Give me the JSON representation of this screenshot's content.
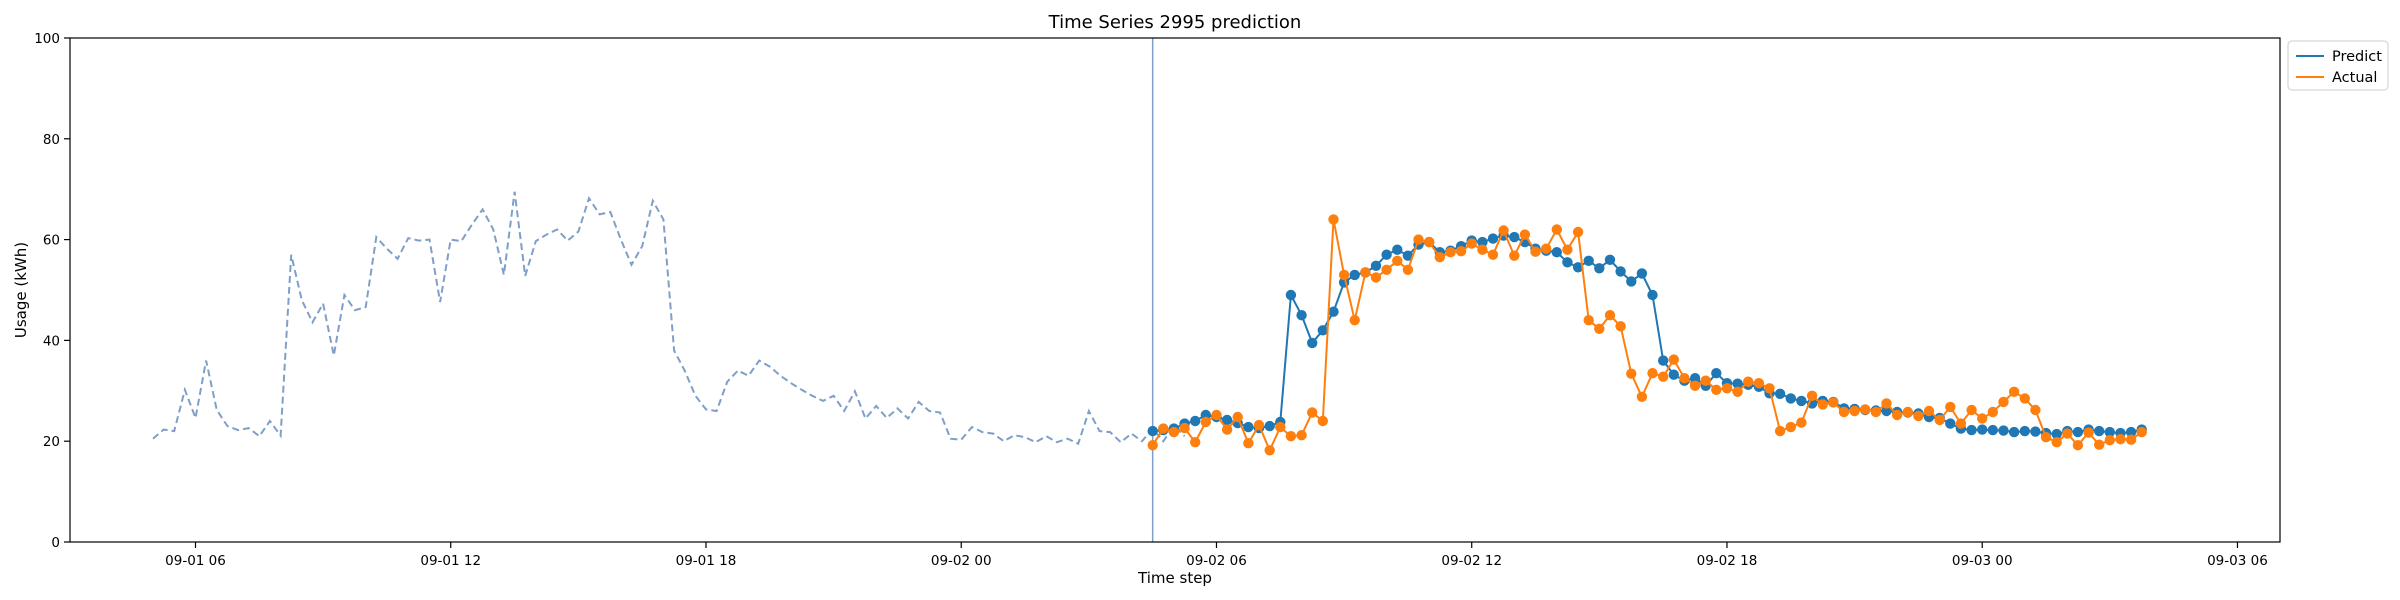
{
  "chart_data": {
    "type": "line",
    "title": "Time Series 2995 prediction",
    "xlabel": "Time step",
    "ylabel": "Usage (kWh)",
    "ylim": [
      0,
      100
    ],
    "xlim": [
      "2024-09-01 03:03",
      "2024-09-03 07:00"
    ],
    "yticks": [
      0,
      20,
      40,
      60,
      80,
      100
    ],
    "xticks": [
      {
        "t": "2024-09-01 06:00",
        "label": "09-01 06"
      },
      {
        "t": "2024-09-01 12:00",
        "label": "09-01 12"
      },
      {
        "t": "2024-09-01 18:00",
        "label": "09-01 18"
      },
      {
        "t": "2024-09-02 00:00",
        "label": "09-02 00"
      },
      {
        "t": "2024-09-02 06:00",
        "label": "09-02 06"
      },
      {
        "t": "2024-09-02 12:00",
        "label": "09-02 12"
      },
      {
        "t": "2024-09-02 18:00",
        "label": "09-02 18"
      },
      {
        "t": "2024-09-03 00:00",
        "label": "09-03 00"
      },
      {
        "t": "2024-09-03 06:00",
        "label": "09-03 06"
      }
    ],
    "grid": false,
    "legend_position": "upper-right-outside",
    "forecast_start": "2024-09-02 04:30",
    "history": {
      "start": "2024-09-01 05:00",
      "step_minutes": 15,
      "color": "#7f9fc8",
      "style": "dashed",
      "values": [
        20.5,
        22.3,
        22.0,
        30.2,
        24.6,
        36.0,
        26.2,
        23.0,
        22.2,
        22.6,
        21.0,
        24.0,
        21.1,
        57.0,
        48.0,
        43.6,
        47.3,
        37.0,
        49.0,
        46.0,
        46.6,
        60.5,
        58.2,
        56.2,
        60.3,
        59.8,
        60.0,
        47.6,
        60.0,
        59.7,
        63.0,
        66.0,
        62.0,
        53.0,
        69.5,
        52.8,
        59.7,
        61.0,
        62.0,
        59.8,
        61.6,
        68.2,
        65.0,
        65.5,
        60.0,
        55.0,
        58.7,
        67.7,
        64.0,
        38.0,
        34.0,
        29.0,
        26.3,
        26.0,
        31.8,
        34.0,
        33.0,
        36.0,
        34.8,
        33.0,
        31.5,
        30.2,
        29.0,
        28.0,
        29.0,
        26.0,
        29.9,
        24.5,
        27.0,
        24.6,
        26.5,
        24.5,
        27.8,
        26.0,
        25.7,
        20.5,
        20.3,
        22.8,
        21.8,
        21.5,
        20.0,
        21.2,
        20.8,
        19.8,
        21.0,
        19.8,
        20.5,
        19.5,
        26.0,
        22.0,
        21.8,
        19.8,
        21.5,
        20.0,
        22.5,
        20.0,
        23.0,
        21.0
      ]
    },
    "series": [
      {
        "name": "Predict",
        "color": "#1f77b4",
        "start": "2024-09-02 04:30",
        "step_minutes": 15,
        "values": [
          22.0,
          22.2,
          22.5,
          23.5,
          24.0,
          25.2,
          24.8,
          24.2,
          23.6,
          22.8,
          22.6,
          23.0,
          23.8,
          49.0,
          45.0,
          39.5,
          42.0,
          45.7,
          51.5,
          53.0,
          53.5,
          54.8,
          57.0,
          58.0,
          56.8,
          59.0,
          59.5,
          57.5,
          57.8,
          58.7,
          59.8,
          59.5,
          60.2,
          60.8,
          60.5,
          59.5,
          58.2,
          57.8,
          57.5,
          55.5,
          54.5,
          55.8,
          54.3,
          56.0,
          53.7,
          51.7,
          53.3,
          49.0,
          36.0,
          33.2,
          32.0,
          32.5,
          31.0,
          33.5,
          31.5,
          31.4,
          31.2,
          30.8,
          29.5,
          29.4,
          28.5,
          28.0,
          27.5,
          28.0,
          27.8,
          26.5,
          26.4,
          26.2,
          26.1,
          26.0,
          25.8,
          25.7,
          25.5,
          24.8,
          24.6,
          23.5,
          22.5,
          22.2,
          22.3,
          22.2,
          22.1,
          21.8,
          22.0,
          21.9,
          21.6,
          21.4,
          22.0,
          21.8,
          22.3,
          22.0,
          21.8,
          21.6,
          21.8,
          22.3
        ]
      },
      {
        "name": "Actual",
        "color": "#ff7f0e",
        "start": "2024-09-02 04:30",
        "step_minutes": 15,
        "values": [
          19.2,
          22.5,
          21.8,
          22.6,
          19.8,
          23.8,
          25.2,
          22.3,
          24.8,
          19.6,
          23.2,
          18.2,
          22.8,
          21.0,
          21.2,
          25.7,
          24.0,
          64.0,
          53.0,
          44.0,
          53.5,
          52.5,
          54.0,
          55.8,
          54.0,
          60.0,
          59.5,
          56.5,
          57.5,
          57.7,
          59.2,
          58.0,
          57.0,
          61.8,
          56.8,
          61.0,
          57.6,
          58.2,
          62.0,
          58.0,
          61.5,
          44.0,
          42.3,
          45.0,
          42.8,
          33.4,
          28.8,
          33.5,
          32.8,
          36.2,
          32.5,
          31.0,
          32.0,
          30.2,
          30.5,
          29.8,
          31.8,
          31.5,
          30.5,
          22.0,
          22.8,
          23.7,
          29.0,
          27.3,
          27.7,
          25.8,
          26.0,
          26.3,
          25.8,
          27.5,
          25.2,
          25.8,
          25.0,
          26.0,
          24.2,
          26.8,
          23.5,
          26.2,
          24.5,
          25.8,
          27.8,
          29.8,
          28.5,
          26.2,
          20.8,
          19.8,
          21.5,
          19.2,
          21.7,
          19.3,
          20.2,
          20.4,
          20.3,
          21.8
        ]
      }
    ]
  }
}
